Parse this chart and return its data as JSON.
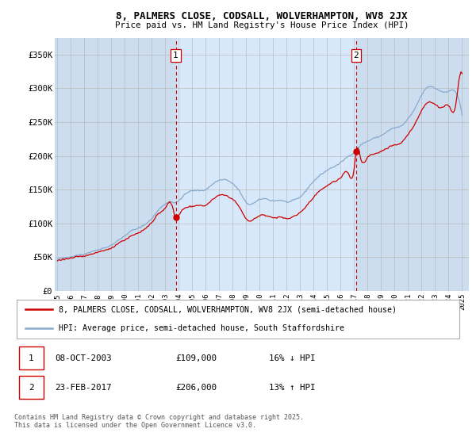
{
  "title": "8, PALMERS CLOSE, CODSALL, WOLVERHAMPTON, WV8 2JX",
  "subtitle": "Price paid vs. HM Land Registry's House Price Index (HPI)",
  "background_color": "#dce9f5",
  "plot_bg_color": "#ccddf0",
  "shade_color": "#ddeeff",
  "ylim": [
    0,
    375000
  ],
  "yticks": [
    0,
    50000,
    100000,
    150000,
    200000,
    250000,
    300000,
    350000
  ],
  "ytick_labels": [
    "£0",
    "£50K",
    "£100K",
    "£150K",
    "£200K",
    "£250K",
    "£300K",
    "£350K"
  ],
  "xlim_start": 1994.8,
  "xlim_end": 2025.5,
  "transaction1": {
    "price": 109000,
    "label": "1",
    "x": 2003.77,
    "hpi_diff": "16% ↓ HPI",
    "date_str": "08-OCT-2003"
  },
  "transaction2": {
    "price": 206000,
    "label": "2",
    "x": 2017.14,
    "hpi_diff": "13% ↑ HPI",
    "date_str": "23-FEB-2017"
  },
  "red_line_color": "#cc0000",
  "blue_line_color": "#88aacc",
  "grid_color": "#bbbbbb",
  "legend_label_red": "8, PALMERS CLOSE, CODSALL, WOLVERHAMPTON, WV8 2JX (semi-detached house)",
  "legend_label_blue": "HPI: Average price, semi-detached house, South Staffordshire",
  "footer_text": "Contains HM Land Registry data © Crown copyright and database right 2025.\nThis data is licensed under the Open Government Licence v3.0.",
  "xtick_labels": [
    "1995",
    "1996",
    "1997",
    "1998",
    "1999",
    "2000",
    "2001",
    "2002",
    "2003",
    "2004",
    "2005",
    "2006",
    "2007",
    "2008",
    "2009",
    "2010",
    "2011",
    "2012",
    "2013",
    "2014",
    "2015",
    "2016",
    "2017",
    "2018",
    "2019",
    "2020",
    "2021",
    "2022",
    "2023",
    "2024",
    "2025"
  ]
}
